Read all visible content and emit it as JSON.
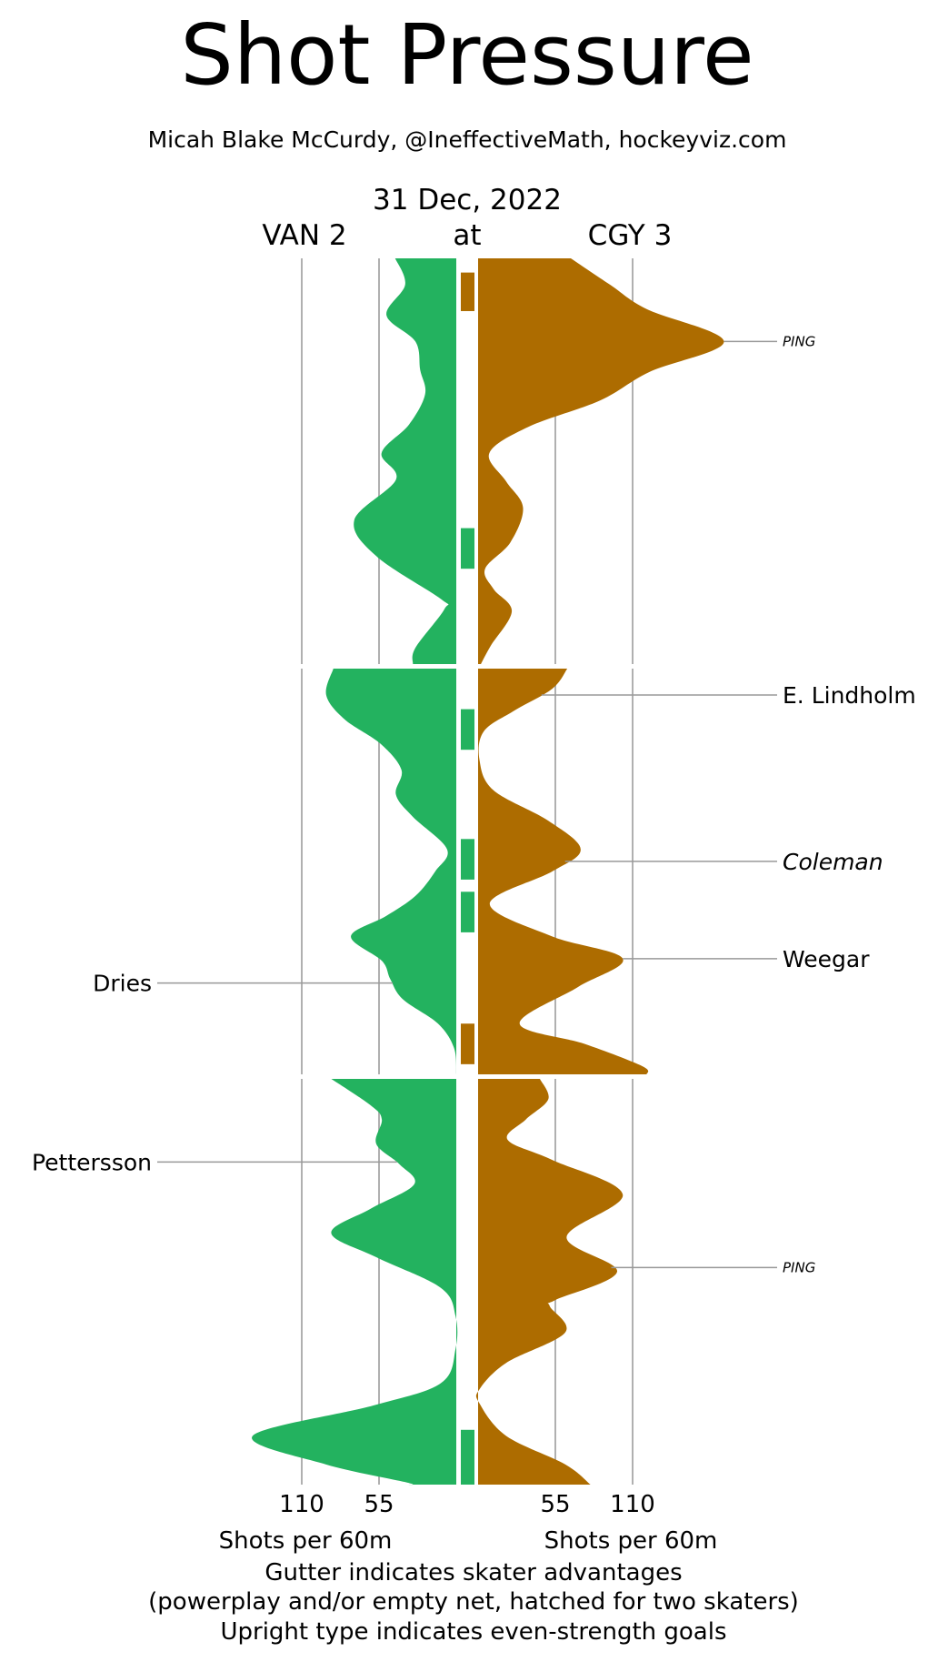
{
  "title": "Shot Pressure",
  "subtitle": "Micah Blake McCurdy, @IneffectiveMath, hockeyviz.com",
  "date": "31 Dec, 2022",
  "away_label": "VAN 2",
  "at_label": "at",
  "home_label": "CGY 3",
  "footnotes": [
    "Gutter indicates skater advantages",
    "(powerplay and/or empty net, hatched for two skaters)",
    "Upright type indicates even-strength goals"
  ],
  "colors": {
    "away": "#23b25f",
    "home": "#ad6c00",
    "grid": "#b0b0b0",
    "leader": "#999999"
  },
  "chart_data": {
    "type": "area",
    "orientation": "vertical-mirrored",
    "xlabel_left": "Shots per 60m",
    "xlabel_right": "Shots per 60m",
    "ticks": [
      110,
      55
    ],
    "tick_labels": [
      "110",
      "55",
      "55",
      "110"
    ],
    "xlim": [
      0,
      150
    ],
    "period_minutes": 20,
    "grid": true,
    "series": [
      {
        "team": "VAN",
        "side": "left",
        "color": "#23b25f",
        "periods": [
          [
            [
              0,
              43.5
            ],
            [
              1.3,
              36.4
            ],
            [
              2.8,
              49.7
            ],
            [
              4.1,
              29.1
            ],
            [
              5.5,
              25.7
            ],
            [
              6.7,
              22.2
            ],
            [
              8.2,
              33.7
            ],
            [
              9.6,
              53.2
            ],
            [
              10.9,
              42.9
            ],
            [
              12.9,
              72.6
            ],
            [
              14.7,
              56.6
            ],
            [
              16.8,
              10.8
            ],
            [
              17.3,
              8.5
            ],
            [
              19.2,
              29.1
            ],
            [
              20,
              30.9
            ]
          ],
          [
            [
              0,
              87.5
            ],
            [
              1.3,
              92.6
            ],
            [
              2.5,
              79.5
            ],
            [
              3.7,
              54
            ],
            [
              5,
              39
            ],
            [
              6.2,
              43
            ],
            [
              7.3,
              31
            ],
            [
              8.9,
              6.6
            ],
            [
              10,
              15
            ],
            [
              11.2,
              29
            ],
            [
              12.2,
              50
            ],
            [
              13.2,
              75
            ],
            [
              14.4,
              53
            ],
            [
              15.3,
              47
            ],
            [
              16.3,
              38
            ],
            [
              17.5,
              13
            ],
            [
              18.7,
              1.6
            ],
            [
              20,
              0
            ]
          ],
          [
            [
              0,
              89
            ],
            [
              1.3,
              61
            ],
            [
              2,
              53
            ],
            [
              3.2,
              57
            ],
            [
              4.2,
              40.6
            ],
            [
              5.2,
              30
            ],
            [
              6.4,
              61
            ],
            [
              7.6,
              89
            ],
            [
              8.8,
              56.6
            ],
            [
              10.3,
              11
            ],
            [
              11.7,
              0.5
            ],
            [
              13.3,
              0.5
            ],
            [
              15,
              11
            ],
            [
              16.1,
              59
            ],
            [
              17.6,
              145
            ],
            [
              19,
              93
            ],
            [
              19.9,
              35
            ],
            [
              20,
              35
            ]
          ]
        ]
      },
      {
        "team": "CGY",
        "side": "right",
        "color": "#ad6c00",
        "periods": [
          [
            [
              0,
              66
            ],
            [
              1.3,
              94
            ],
            [
              2.5,
              120
            ],
            [
              4.1,
              175
            ],
            [
              5.6,
              122
            ],
            [
              7,
              87
            ],
            [
              8.3,
              36
            ],
            [
              9.6,
              8
            ],
            [
              11,
              20
            ],
            [
              12.3,
              32
            ],
            [
              14,
              23
            ],
            [
              15.3,
              5
            ],
            [
              16.3,
              11
            ],
            [
              17.4,
              24
            ],
            [
              19.1,
              9
            ],
            [
              20,
              2
            ]
          ],
          [
            [
              0,
              63.5
            ],
            [
              1,
              52.7
            ],
            [
              2.1,
              25
            ],
            [
              3.1,
              4
            ],
            [
              4.5,
              1
            ],
            [
              6,
              11
            ],
            [
              7.5,
              50
            ],
            [
              8.9,
              73
            ],
            [
              10,
              52.7
            ],
            [
              11.6,
              8.3
            ],
            [
              13.2,
              52.7
            ],
            [
              14.3,
              103
            ],
            [
              15.7,
              71
            ],
            [
              17.5,
              29.6
            ],
            [
              18.5,
              75.8
            ],
            [
              19.6,
              117
            ],
            [
              20,
              120
            ]
          ],
          [
            [
              0,
              44
            ],
            [
              1,
              50
            ],
            [
              2,
              34
            ],
            [
              3,
              21
            ],
            [
              4,
              53
            ],
            [
              5.7,
              103
            ],
            [
              7.8,
              63
            ],
            [
              9.5,
              99
            ],
            [
              10.9,
              55
            ],
            [
              11.2,
              51
            ],
            [
              12.5,
              62
            ],
            [
              14,
              20
            ],
            [
              15.3,
              1
            ],
            [
              16,
              1
            ],
            [
              17.6,
              20
            ],
            [
              19,
              62
            ],
            [
              20,
              80
            ]
          ]
        ]
      }
    ],
    "gutter": [
      {
        "period": 1,
        "start": 0.7,
        "end": 2.6,
        "team": "CGY"
      },
      {
        "period": 1,
        "start": 13.3,
        "end": 15.3,
        "team": "VAN"
      },
      {
        "period": 2,
        "start": 2.0,
        "end": 4.0,
        "team": "VAN"
      },
      {
        "period": 2,
        "start": 8.4,
        "end": 10.4,
        "team": "VAN"
      },
      {
        "period": 2,
        "start": 11.0,
        "end": 13.0,
        "team": "VAN"
      },
      {
        "period": 2,
        "start": 17.5,
        "end": 19.5,
        "team": "CGY"
      },
      {
        "period": 3,
        "start": 17.3,
        "end": 20.0,
        "team": "VAN"
      }
    ],
    "annotations": [
      {
        "label": "PING",
        "side": "right",
        "period": 1,
        "minute": 4.1,
        "style": "italic-small"
      },
      {
        "label": "E. Lindholm",
        "side": "right",
        "period": 2,
        "minute": 1.3,
        "style": "upright"
      },
      {
        "label": "Coleman",
        "side": "right",
        "period": 2,
        "minute": 9.5,
        "style": "italic"
      },
      {
        "label": "Weegar",
        "side": "right",
        "period": 2,
        "minute": 14.3,
        "style": "upright"
      },
      {
        "label": "Dries",
        "side": "left",
        "period": 2,
        "minute": 15.5,
        "style": "upright"
      },
      {
        "label": "Pettersson",
        "side": "left",
        "period": 3,
        "minute": 4.1,
        "style": "upright"
      },
      {
        "label": "PING",
        "side": "right",
        "period": 3,
        "minute": 9.3,
        "style": "italic-small"
      }
    ]
  }
}
